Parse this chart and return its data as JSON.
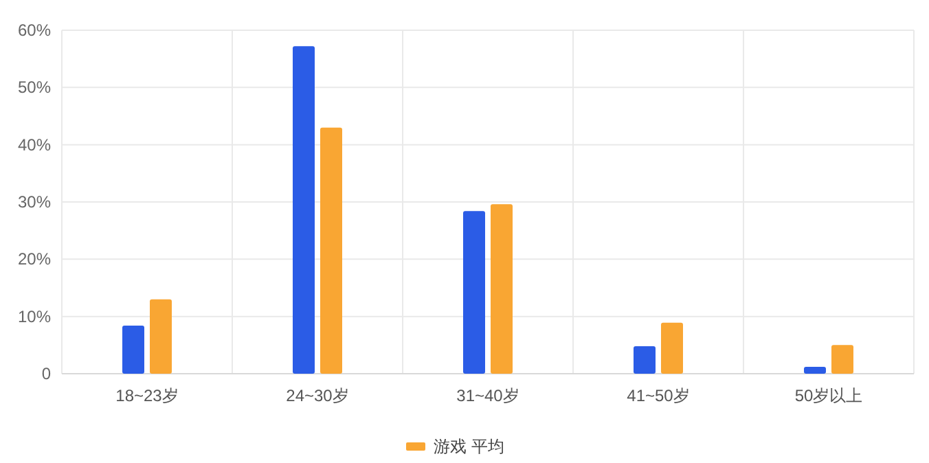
{
  "chart_data": {
    "type": "bar",
    "categories": [
      "18~23岁",
      "24~30岁",
      "31~40岁",
      "41~50岁",
      "50岁以上"
    ],
    "series": [
      {
        "color": "#2b5ce6",
        "values": [
          8.4,
          57.2,
          28.4,
          4.8,
          1.2
        ]
      },
      {
        "name": "游戏 平均",
        "color": "#f9a633",
        "values": [
          13.0,
          43.0,
          29.6,
          8.9,
          5.0
        ]
      }
    ],
    "ylim": [
      0,
      60
    ],
    "yticks": [
      {
        "value": 0,
        "label": "0"
      },
      {
        "value": 10,
        "label": "10%"
      },
      {
        "value": 20,
        "label": "20%"
      },
      {
        "value": 30,
        "label": "30%"
      },
      {
        "value": 40,
        "label": "40%"
      },
      {
        "value": 50,
        "label": "50%"
      },
      {
        "value": 60,
        "label": "60%"
      }
    ],
    "grid": true,
    "legend": "bottom"
  }
}
